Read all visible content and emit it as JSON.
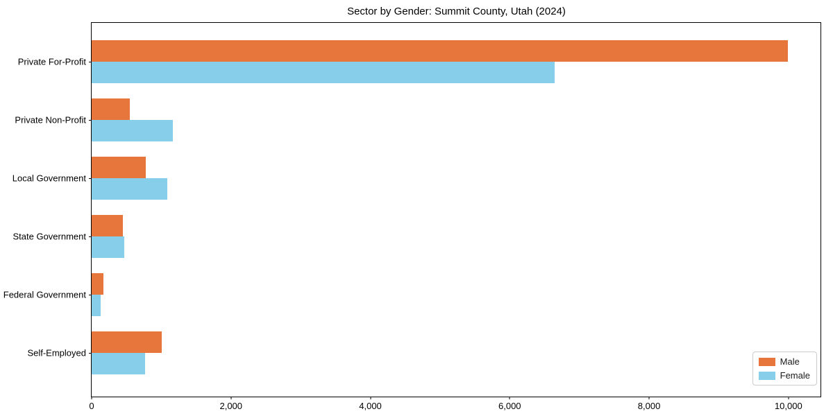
{
  "chart_data": {
    "type": "bar",
    "orientation": "horizontal",
    "title": "Sector by Gender: Summit County, Utah (2024)",
    "categories": [
      "Private For-Profit",
      "Private Non-Profit",
      "Local Government",
      "State Government",
      "Federal Government",
      "Self-Employed"
    ],
    "series": [
      {
        "name": "Male",
        "color": "#e6763c",
        "values": [
          9990,
          545,
          775,
          450,
          165,
          1010
        ]
      },
      {
        "name": "Female",
        "color": "#87ceeb",
        "values": [
          6640,
          1170,
          1090,
          465,
          130,
          770
        ]
      }
    ],
    "xlabel": "",
    "ylabel": "",
    "xlim": [
      0,
      10460
    ],
    "xticks": [
      {
        "value": 0,
        "label": "0"
      },
      {
        "value": 2000,
        "label": "2,000"
      },
      {
        "value": 4000,
        "label": "4,000"
      },
      {
        "value": 6000,
        "label": "6,000"
      },
      {
        "value": 8000,
        "label": "8,000"
      },
      {
        "value": 10000,
        "label": "10,000"
      }
    ],
    "grid": false,
    "legend": {
      "position": "lower right"
    },
    "layout": {
      "first_row_center_pct": 10.35,
      "row_step_pct": 15.6
    }
  }
}
